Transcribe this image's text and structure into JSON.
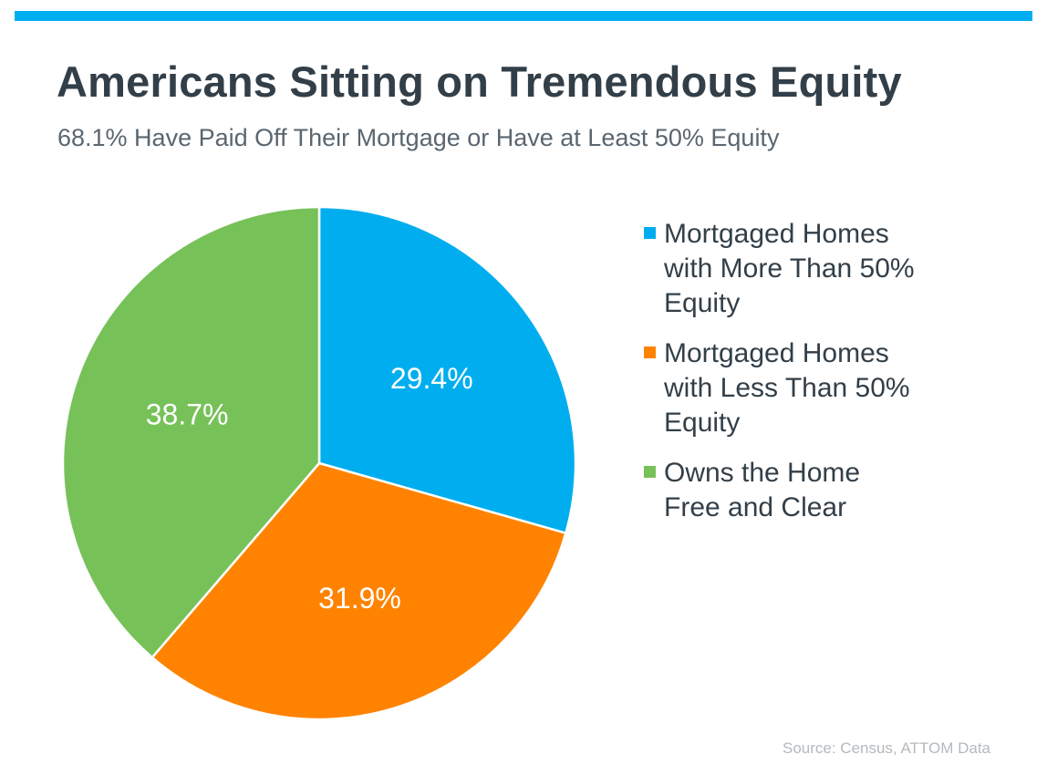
{
  "header": {
    "accent_color": "#00aeef"
  },
  "chart_data": {
    "type": "pie",
    "title": "Americans Sitting on Tremendous Equity",
    "subtitle": "68.1% Have Paid Off Their Mortgage or Have at Least 50% Equity",
    "legend_position": "right",
    "slices": [
      {
        "name": "Mortgaged Homes with More Than 50% Equity",
        "legend_lines": [
          "Mortgaged Homes",
          "with More Than 50%",
          "Equity"
        ],
        "value": 29.4,
        "label": "29.4%",
        "color": "#00aeef"
      },
      {
        "name": "Mortgaged Homes with Less Than 50% Equity",
        "legend_lines": [
          "Mortgaged Homes",
          "with Less Than 50%",
          "Equity"
        ],
        "value": 31.9,
        "label": "31.9%",
        "color": "#ff8300"
      },
      {
        "name": "Owns the Home Free and Clear",
        "legend_lines": [
          "Owns the Home",
          "Free and Clear"
        ],
        "value": 38.7,
        "label": "38.7%",
        "color": "#77c159"
      }
    ]
  },
  "footer": {
    "source": "Source: Census, ATTOM Data"
  }
}
